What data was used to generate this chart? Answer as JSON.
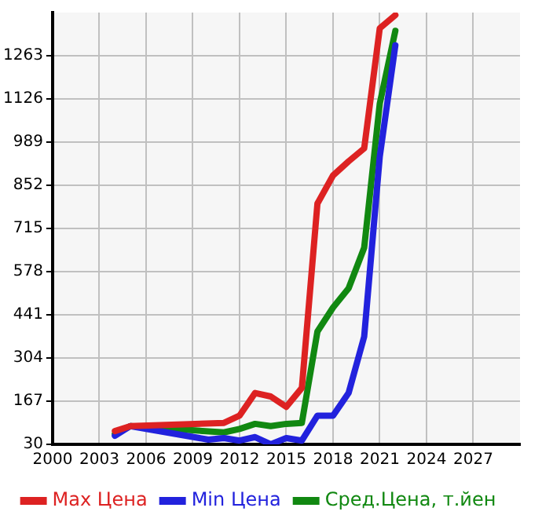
{
  "chart_data": {
    "type": "line",
    "series": [
      {
        "name": "Max Цена",
        "color": "#dd2222",
        "x": [
          2004,
          2005,
          2011,
          2012,
          2013,
          2014,
          2015,
          2016,
          2017,
          2018,
          2019,
          2020,
          2021,
          2022
        ],
        "values": [
          72,
          88,
          98,
          121,
          193,
          182,
          149,
          209,
          794,
          883,
          928,
          969,
          1350,
          1392
        ]
      },
      {
        "name": "Min Цена",
        "color": "#2222dd",
        "x": [
          2004,
          2005,
          2010,
          2011,
          2012,
          2013,
          2014,
          2015,
          2016,
          2017,
          2018,
          2019,
          2020,
          2021,
          2022
        ],
        "values": [
          57,
          88,
          45,
          50,
          42,
          53,
          30,
          50,
          42,
          121,
          121,
          193,
          372,
          943,
          1296
        ]
      },
      {
        "name": "Сред.Цена, т.йен",
        "color": "#118811",
        "x": [
          2004,
          2005,
          2011,
          2012,
          2013,
          2014,
          2015,
          2016,
          2017,
          2018,
          2019,
          2020,
          2021,
          2022
        ],
        "values": [
          63,
          88,
          68,
          79,
          95,
          88,
          95,
          98,
          388,
          464,
          525,
          654,
          1111,
          1342
        ]
      }
    ],
    "xlim": [
      2000,
      2030
    ],
    "xticks": [
      2000,
      2003,
      2006,
      2009,
      2012,
      2015,
      2018,
      2021,
      2024,
      2027
    ],
    "ylim": [
      30,
      1400
    ],
    "yticks": [
      30,
      167,
      304,
      441,
      578,
      715,
      852,
      989,
      1126,
      1263
    ],
    "grid": true,
    "legend": "bottom",
    "marker": "none",
    "line_style": "solid"
  }
}
